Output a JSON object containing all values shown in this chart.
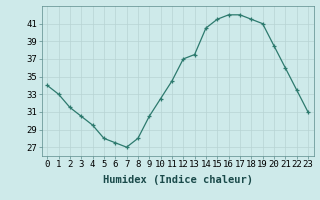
{
  "x": [
    0,
    1,
    2,
    3,
    4,
    5,
    6,
    7,
    8,
    9,
    10,
    11,
    12,
    13,
    14,
    15,
    16,
    17,
    18,
    19,
    20,
    21,
    22,
    23
  ],
  "y": [
    34.0,
    33.0,
    31.5,
    30.5,
    29.5,
    28.0,
    27.5,
    27.0,
    28.0,
    30.5,
    32.5,
    34.5,
    37.0,
    37.5,
    40.5,
    41.5,
    42.0,
    42.0,
    41.5,
    41.0,
    38.5,
    36.0,
    33.5,
    31.0
  ],
  "xlabel": "Humidex (Indice chaleur)",
  "ylim": [
    26,
    43
  ],
  "yticks": [
    27,
    29,
    31,
    33,
    35,
    37,
    39,
    41
  ],
  "xticks": [
    0,
    1,
    2,
    3,
    4,
    5,
    6,
    7,
    8,
    9,
    10,
    11,
    12,
    13,
    14,
    15,
    16,
    17,
    18,
    19,
    20,
    21,
    22,
    23
  ],
  "line_color": "#2d7a6e",
  "marker": "+",
  "bg_plot": "#ceeaea",
  "bg_fig": "#ceeaea",
  "grid_color": "#b8d4d4",
  "tick_label_fontsize": 6.5,
  "xlabel_fontsize": 7.5
}
